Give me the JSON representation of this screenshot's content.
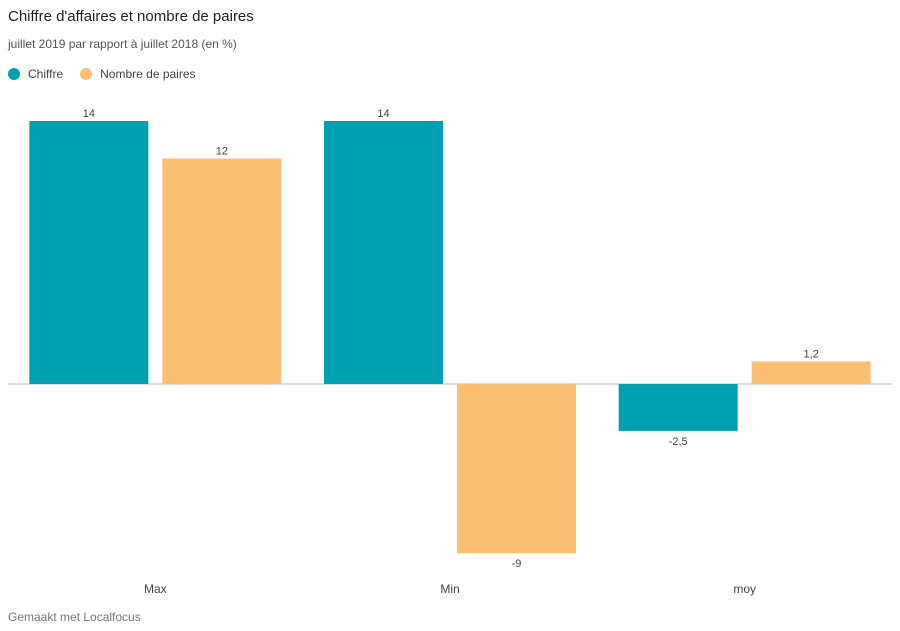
{
  "chart_data": {
    "type": "bar",
    "title": "Chiffre d'affaires et nombre de paires",
    "subtitle": "juillet 2019 par rapport à juillet 2018 (en %)",
    "categories": [
      "Max",
      "Min",
      "moy"
    ],
    "series": [
      {
        "name": "Chiffre",
        "color": "#00a0b0",
        "values": [
          14,
          14,
          -2.5
        ],
        "labels": [
          "14",
          "14",
          "-2,5"
        ]
      },
      {
        "name": "Nombre de paires",
        "color": "#fbbf74",
        "values": [
          12,
          -9,
          1.2
        ],
        "labels": [
          "12",
          "-9",
          "1,2"
        ]
      }
    ],
    "ylim": [
      -9,
      14
    ],
    "grid": false,
    "legend_position": "top-left",
    "footer": "Gemaakt met Localfocus"
  }
}
